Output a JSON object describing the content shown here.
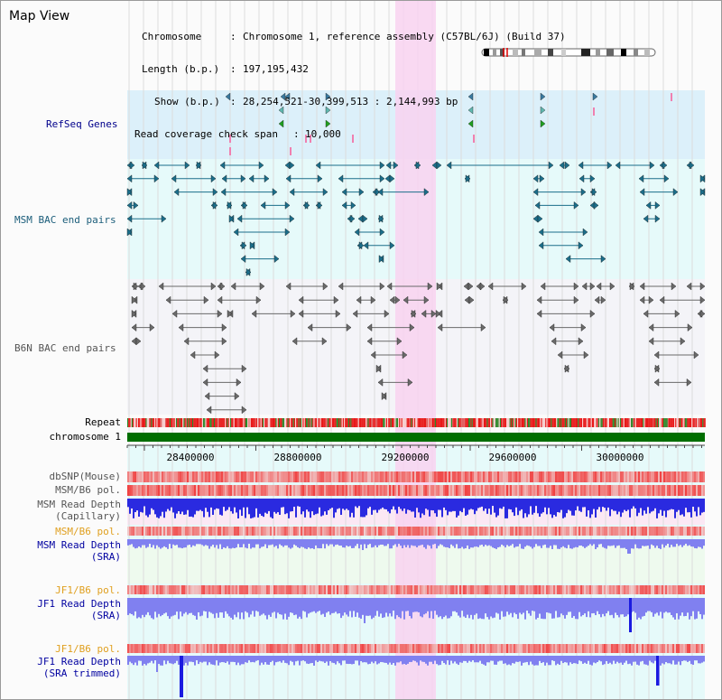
{
  "page": {
    "title": "Map View"
  },
  "info": {
    "chromosome_label": "Chromosome",
    "chromosome_value": "Chromosome 1, reference assembly (C57BL/6J) (Build 37)",
    "length_label": "Length (b.p.)",
    "length_value": "197,195,432",
    "show_label": "Show (b.p.)",
    "show_value": "28,254,521-30,399,513 : 2,144,993 bp",
    "coverage_label": "Read coverage check span",
    "coverage_value": "10,000"
  },
  "tracks": {
    "refseq": {
      "label": "RefSeq Genes",
      "color": "#00008b"
    },
    "msm_bac": {
      "label": "MSM BAC end pairs",
      "color": "#1b5d7a"
    },
    "b6n_bac": {
      "label": "B6N BAC end pairs",
      "color": "#555555"
    },
    "repeat": {
      "label": "Repeat",
      "color": "#000000"
    },
    "chromosome": {
      "label": "chromosome 1",
      "color": "#000000"
    },
    "dbsnp": {
      "label": "dbSNP(Mouse)",
      "color": "#555555"
    },
    "msm_b6_pol_1": {
      "label": "MSM/B6 pol.",
      "color": "#555555"
    },
    "msm_depth_cap_1": {
      "label": "MSM Read Depth",
      "color": "#555555"
    },
    "msm_depth_cap_2": {
      "label": "(Capillary)",
      "color": "#555555"
    },
    "msm_b6_pol_2": {
      "label": "MSM/B6 pol.",
      "color": "#e0a020"
    },
    "msm_depth_sra_1": {
      "label": "MSM Read Depth",
      "color": "#0000a0"
    },
    "msm_depth_sra_2": {
      "label": "(SRA)",
      "color": "#0000a0"
    },
    "jf1_b6_pol_1": {
      "label": "JF1/B6 pol.",
      "color": "#e0a020"
    },
    "jf1_depth_sra_1": {
      "label": "JF1 Read Depth",
      "color": "#0000a0"
    },
    "jf1_depth_sra_2": {
      "label": "(SRA)",
      "color": "#0000a0"
    },
    "jf1_b6_pol_2": {
      "label": "JF1/B6 pol.",
      "color": "#e0a020"
    },
    "jf1_depth_trim_1": {
      "label": "JF1 Read Depth",
      "color": "#0000a0"
    },
    "jf1_depth_trim_2": {
      "label": "(SRA trimmed)",
      "color": "#0000a0"
    }
  },
  "ruler": {
    "ticks": [
      "28400000",
      "28800000",
      "29200000",
      "29600000",
      "30000000"
    ]
  },
  "colors": {
    "refseq_bg": "#dcf0fa",
    "msm_bg": "#e6fafa",
    "b6n_bg": "#f4f4f8",
    "highlight": "#f8d2f0",
    "repeat_red": "#e81818",
    "chromosome_green": "#006e00",
    "depth_blue": "#2a2ae0",
    "depth_light": "#8080f0",
    "pol_red": "#f04848"
  }
}
